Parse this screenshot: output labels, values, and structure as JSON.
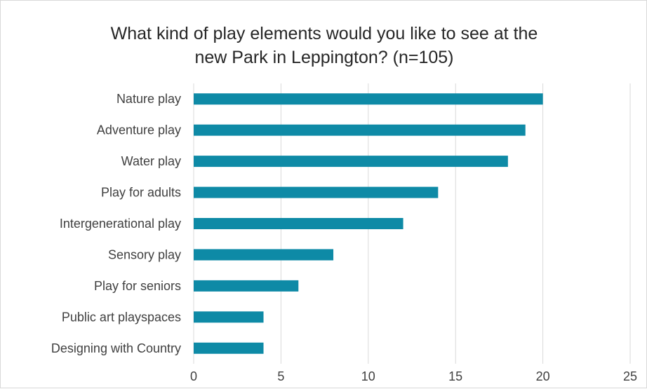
{
  "chart_data": {
    "type": "bar",
    "orientation": "horizontal",
    "title_lines": [
      "What kind of play elements would you like to see at the",
      "new Park in Leppington? (n=105)"
    ],
    "categories": [
      "Nature play",
      "Adventure play",
      "Water play",
      "Play for adults",
      "Intergenerational play",
      "Sensory play",
      "Play for seniors",
      "Public art playspaces",
      "Designing with Country"
    ],
    "values": [
      20,
      19,
      18,
      14,
      12,
      8,
      6,
      4,
      4
    ],
    "xlim": [
      0,
      25
    ],
    "xticks": [
      "0",
      "5",
      "10",
      "15",
      "20",
      "25"
    ],
    "xlabel": "",
    "ylabel": "",
    "grid": "vertical",
    "legend": "none",
    "bar_color": "#0e8aa6"
  }
}
